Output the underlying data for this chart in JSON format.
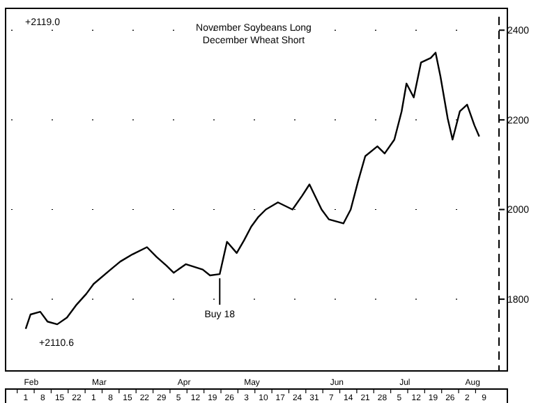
{
  "chart_data": {
    "type": "line",
    "title": "November Soybeans Long",
    "subtitle": "December Wheat Short",
    "x": [
      "--02-01",
      "--02-03",
      "--02-07",
      "--02-10",
      "--02-14",
      "--02-18",
      "--02-22",
      "--02-26",
      "--03-01",
      "--03-08",
      "--03-12",
      "--03-17",
      "--03-23",
      "--03-27",
      "--03-31",
      "--04-03",
      "--04-08",
      "--04-15",
      "--04-18",
      "--04-22",
      "--04-25",
      "--04-29",
      "--05-02",
      "--05-05",
      "--05-08",
      "--05-11",
      "--05-16",
      "--05-22",
      "--05-26",
      "--05-29",
      "--06-03",
      "--06-06",
      "--06-12",
      "--06-15",
      "--06-18",
      "--06-21",
      "--06-26",
      "--06-29",
      "--07-03",
      "--07-06",
      "--07-08",
      "--07-11",
      "--07-14",
      "--07-18",
      "--07-20",
      "--07-22",
      "--07-25",
      "--07-27",
      "--07-30",
      "--08-02",
      "--08-05",
      "--08-07"
    ],
    "values": [
      1734,
      1766,
      1772,
      1750,
      1744,
      1759,
      1788,
      1812,
      1834,
      1866,
      1884,
      1900,
      1916,
      1894,
      1875,
      1859,
      1878,
      1866,
      1853,
      1856,
      1928,
      1903,
      1931,
      1962,
      1984,
      2000,
      2016,
      2000,
      2031,
      2056,
      2000,
      1978,
      1969,
      2000,
      2062,
      2119,
      2141,
      2125,
      2156,
      2219,
      2281,
      2250,
      2328,
      2338,
      2350,
      2297,
      2203,
      2156,
      2219,
      2234,
      2188,
      2163
    ],
    "color": "#000000",
    "line_style": "solid",
    "marker": "none",
    "grid": "y",
    "xlim": [
      "--01-26",
      "--08-14"
    ],
    "xticks": [
      {
        "value": "--02-01",
        "label": "1"
      },
      {
        "value": "--02-08",
        "label": "8"
      },
      {
        "value": "--02-15",
        "label": "15"
      },
      {
        "value": "--02-22",
        "label": "22"
      },
      {
        "value": "--03-01",
        "label": "1"
      },
      {
        "value": "--03-08",
        "label": "8"
      },
      {
        "value": "--03-15",
        "label": "15"
      },
      {
        "value": "--03-22",
        "label": "22"
      },
      {
        "value": "--03-29",
        "label": "29"
      },
      {
        "value": "--04-05",
        "label": "5"
      },
      {
        "value": "--04-12",
        "label": "12"
      },
      {
        "value": "--04-19",
        "label": "19"
      },
      {
        "value": "--04-26",
        "label": "26"
      },
      {
        "value": "--05-03",
        "label": "3"
      },
      {
        "value": "--05-10",
        "label": "10"
      },
      {
        "value": "--05-17",
        "label": "17"
      },
      {
        "value": "--05-24",
        "label": "24"
      },
      {
        "value": "--05-31",
        "label": "31"
      },
      {
        "value": "--06-07",
        "label": "7"
      },
      {
        "value": "--06-14",
        "label": "14"
      },
      {
        "value": "--06-21",
        "label": "21"
      },
      {
        "value": "--06-28",
        "label": "28"
      },
      {
        "value": "--07-05",
        "label": "5"
      },
      {
        "value": "--07-12",
        "label": "12"
      },
      {
        "value": "--07-19",
        "label": "19"
      },
      {
        "value": "--07-26",
        "label": "26"
      },
      {
        "value": "--08-02",
        "label": "2"
      },
      {
        "value": "--08-09",
        "label": "9"
      }
    ],
    "ylim": [
      1640,
      2430
    ],
    "yticks": [
      1800,
      2000,
      2200,
      2400
    ],
    "annotations": [
      "Feb",
      "Mar",
      "Apr",
      "May",
      "Jun",
      "Jul",
      "Aug",
      {
        "text": "Buy 18",
        "x": "--04-22",
        "y": 1856
      },
      "+2119.0",
      "+2110.6"
    ]
  }
}
